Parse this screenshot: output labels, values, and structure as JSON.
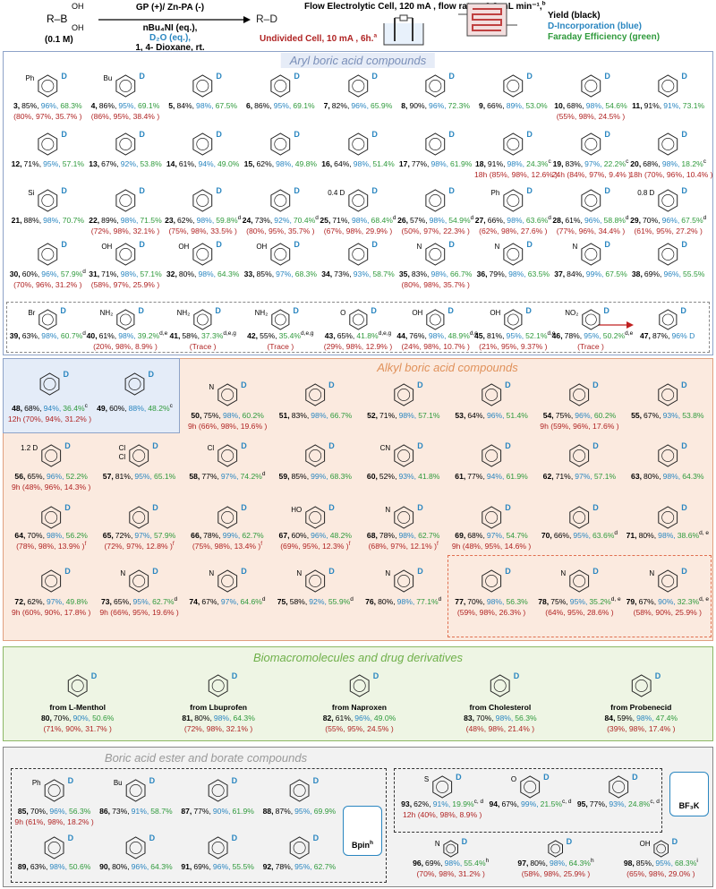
{
  "header": {
    "reactant": "R–B",
    "oh": [
      "OH",
      "OH"
    ],
    "concentration": "(0.1 M)",
    "conditions": [
      "GP (+)/ Zn-PA (-)",
      "nBu₄NI (eq.),",
      "D₂O (eq.),",
      "1, 4- Dioxane, rt."
    ],
    "product": "R–D",
    "flow_cell": "Flow Electrolytic Cell, 120 mA , flow rate = 0.3 mL min⁻¹,",
    "flow_sup": "b",
    "undivided_cell": "Undivided Cell, 10 mA , 6h.",
    "undivided_sup": "a",
    "legend": [
      "Yield (black)",
      "D-Incorporation (blue)",
      "Faraday Efficiency (green)"
    ]
  },
  "structure_label": "D",
  "sections": [
    {
      "title": "Aryl boric acid compounds",
      "entries": [
        {
          "n": "3,",
          "y": "85%,",
          "d": "96%,",
          "fe": "68.3%",
          "alt": "(80%, 97%, 35.7% )",
          "g": [
            "Ph"
          ]
        },
        {
          "n": "4,",
          "y": "86%,",
          "d": "95%,",
          "fe": "69.1%",
          "alt": "(86%, 95%, 38.4% )",
          "g": [
            "Bu"
          ]
        },
        {
          "n": "5,",
          "y": "84%,",
          "d": "98%,",
          "fe": "67.5%"
        },
        {
          "n": "6,",
          "y": "86%,",
          "d": "95%,",
          "fe": "69.1%"
        },
        {
          "n": "7,",
          "y": "82%,",
          "d": "96%,",
          "fe": "65.9%"
        },
        {
          "n": "8,",
          "y": "90%,",
          "d": "96%,",
          "fe": "72.3%"
        },
        {
          "n": "9,",
          "y": "66%,",
          "d": "89%,",
          "fe": "53.0%"
        },
        {
          "n": "10,",
          "y": "68%,",
          "d": "98%,",
          "fe": "54.6%",
          "alt": "(55%, 98%, 24.5% )"
        },
        {
          "n": "11,",
          "y": "91%,",
          "d": "91%,",
          "fe": "73.1%"
        },
        {
          "n": "12,",
          "y": "71%,",
          "d": "95%,",
          "fe": "57.1%"
        },
        {
          "n": "13,",
          "y": "67%,",
          "d": "92%,",
          "fe": "53.8%"
        },
        {
          "n": "14,",
          "y": "61%,",
          "d": "94%,",
          "fe": "49.0%"
        },
        {
          "n": "15,",
          "y": "62%,",
          "d": "98%,",
          "fe": "49.8%"
        },
        {
          "n": "16,",
          "y": "64%,",
          "d": "98%,",
          "fe": "51.4%"
        },
        {
          "n": "17,",
          "y": "77%,",
          "d": "98%,",
          "fe": "61.9%"
        },
        {
          "n": "18,",
          "y": "91%,",
          "d": "98%,",
          "fe": "24.3%",
          "sup": "c",
          "alt": "18h (85%, 98%, 12.6% )"
        },
        {
          "n": "19,",
          "y": "83%,",
          "d": "97%,",
          "fe": "22.2%",
          "sup": "c",
          "alt": "24h (84%, 97%, 9.4% )"
        },
        {
          "n": "20,",
          "y": "68%,",
          "d": "98%,",
          "fe": "18.2%",
          "sup": "c",
          "alt": "18h (70%, 96%, 10.4% )"
        },
        {
          "n": "21,",
          "y": "88%,",
          "d": "98%,",
          "fe": "70.7%",
          "g": [
            "Si"
          ]
        },
        {
          "n": "22,",
          "y": "89%,",
          "d": "98%,",
          "fe": "71.5%",
          "alt": "(72%, 98%, 32.1% )"
        },
        {
          "n": "23,",
          "y": "62%,",
          "d": "98%,",
          "fe": "59.8%",
          "sup": "d",
          "alt": "(75%, 98%, 33.5% )"
        },
        {
          "n": "24,",
          "y": "73%,",
          "d": "92%,",
          "fe": "70.4%",
          "sup": "d",
          "alt": "(80%, 95%, 35.7% )"
        },
        {
          "n": "25,",
          "y": "71%,",
          "d": "98%,",
          "fe": "68.4%",
          "sup": "d",
          "alt": "(67%, 98%, 29.9% )",
          "g": [
            "0.4 D"
          ]
        },
        {
          "n": "26,",
          "y": "57%,",
          "d": "98%,",
          "fe": "54.9%",
          "sup": "d",
          "alt": "(50%, 97%, 22.3% )"
        },
        {
          "n": "27,",
          "y": "66%,",
          "d": "98%,",
          "fe": "63.6%",
          "sup": "d",
          "alt": "(62%, 98%, 27.6% )",
          "g": [
            "Ph"
          ]
        },
        {
          "n": "28,",
          "y": "61%,",
          "d": "96%,",
          "fe": "58.8%",
          "sup": "d",
          "alt": "(77%, 96%, 34.4% )"
        },
        {
          "n": "29,",
          "y": "70%,",
          "d": "96%,",
          "fe": "67.5%",
          "sup": "d",
          "alt": "(61%, 95%, 27.2% )",
          "g": [
            "0.8 D"
          ]
        },
        {
          "n": "30,",
          "y": "60%,",
          "d": "96%,",
          "fe": "57.9%",
          "sup": "d",
          "alt": "(70%, 96%, 31.2% )"
        },
        {
          "n": "31,",
          "y": "71%,",
          "d": "98%,",
          "fe": "57.1%",
          "alt": "(58%, 97%, 25.9% )",
          "g": [
            "OH"
          ]
        },
        {
          "n": "32,",
          "y": "80%,",
          "d": "98%,",
          "fe": "64.3%",
          "g": [
            "OH"
          ]
        },
        {
          "n": "33,",
          "y": "85%,",
          "d": "97%,",
          "fe": "68.3%",
          "g": [
            "OH"
          ]
        },
        {
          "n": "34,",
          "y": "73%,",
          "d": "93%,",
          "fe": "58.7%"
        },
        {
          "n": "35,",
          "y": "83%,",
          "d": "98%,",
          "fe": "66.7%",
          "alt": "(80%, 98%, 35.7% )",
          "g": [
            "N"
          ]
        },
        {
          "n": "36,",
          "y": "79%,",
          "d": "98%,",
          "fe": "63.5%",
          "g": [
            "N"
          ]
        },
        {
          "n": "37,",
          "y": "84%,",
          "d": "99%,",
          "fe": "67.5%",
          "g": [
            "N"
          ]
        },
        {
          "n": "38,",
          "y": "69%,",
          "d": "96%,",
          "fe": "55.5%"
        },
        {
          "n": "39,",
          "y": "63%,",
          "d": "98%,",
          "fe": "60.7%",
          "sup": "d",
          "g": [
            "Br"
          ]
        },
        {
          "n": "40,",
          "y": "61%,",
          "d": "98%,",
          "fe": "39.2%",
          "sup": "d,e",
          "alt": "(20%, 98%, 8.9% )",
          "g": [
            "NH₂"
          ]
        },
        {
          "n": "41,",
          "y": "58%,",
          "fe": "37.3%",
          "sup": "d,e,g",
          "alt": "(Trace )",
          "g": [
            "NH₂"
          ]
        },
        {
          "n": "42,",
          "y": "55%,",
          "fe": "35.4%",
          "sup": "d,e,g",
          "alt": "(Trace )",
          "g": [
            "NH₂"
          ]
        },
        {
          "n": "43,",
          "y": "65%,",
          "fe": "41.8%",
          "sup": "d,e,g",
          "alt": "(29%, 98%, 12.9% )",
          "g": [
            "O"
          ]
        },
        {
          "n": "44,",
          "y": "76%,",
          "d": "98%,",
          "fe": "48.9%",
          "sup": "d,e",
          "alt": "(24%, 98%, 10.7% )",
          "g": [
            "OH"
          ]
        },
        {
          "n": "45,",
          "y": "81%,",
          "d": "95%,",
          "fe": "52.1%",
          "sup": "d,e",
          "alt": "(21%, 95%, 9.37% )",
          "g": [
            "OH"
          ]
        },
        {
          "n": "46,",
          "y": "78%,",
          "d": "95%,",
          "fe": "50.2%",
          "sup": "d,e",
          "alt": "(Trace )",
          "g": [
            "NO₂"
          ]
        },
        {
          "n": "47,",
          "y": "87%,",
          "d": "96% D"
        }
      ]
    },
    {
      "entries": [
        {
          "n": "48,",
          "y": "68%,",
          "d": "94%,",
          "fe": "36.4%",
          "sup": "c",
          "alt": "12h (70%, 94%, 31.2% )"
        },
        {
          "n": "49,",
          "y": "60%,",
          "d": "88%,",
          "fe": "48.2%",
          "sup": "c"
        }
      ]
    },
    {
      "title": "Alkyl boric acid compounds",
      "entries": [
        {
          "n": "50,",
          "y": "75%,",
          "d": "98%,",
          "fe": "60.2%",
          "alt": "9h (66%, 98%, 19.6% )",
          "g": [
            "N"
          ]
        },
        {
          "n": "51,",
          "y": "83%,",
          "d": "98%,",
          "fe": "66.7%"
        },
        {
          "n": "52,",
          "y": "71%,",
          "d": "98%,",
          "fe": "57.1%"
        },
        {
          "n": "53,",
          "y": "64%,",
          "d": "96%,",
          "fe": "51.4%"
        },
        {
          "n": "54,",
          "y": "75%,",
          "d": "96%,",
          "fe": "60.2%",
          "alt": "9h (59%, 96%, 17.6% )"
        },
        {
          "n": "55,",
          "y": "67%,",
          "d": "93%,",
          "fe": "53.8%"
        },
        {
          "n": "56,",
          "y": "65%,",
          "d": "96%,",
          "fe": "52.2%",
          "alt": "9h (48%, 96%, 14.3% )",
          "g": [
            "1.2 D"
          ]
        },
        {
          "n": "57,",
          "y": "81%,",
          "d": "95%,",
          "fe": "65.1%",
          "g": [
            "Cl",
            "Cl"
          ]
        },
        {
          "n": "58,",
          "y": "77%,",
          "d": "97%,",
          "fe": "74.2%",
          "sup": "d",
          "g": [
            "Cl"
          ]
        },
        {
          "n": "59,",
          "y": "85%,",
          "d": "99%,",
          "fe": "68.3%"
        },
        {
          "n": "60,",
          "y": "52%,",
          "d": "93%,",
          "fe": "41.8%",
          "g": [
            "CN"
          ]
        },
        {
          "n": "61,",
          "y": "77%,",
          "d": "94%,",
          "fe": "61.9%"
        },
        {
          "n": "62,",
          "y": "71%,",
          "d": "97%,",
          "fe": "57.1%"
        },
        {
          "n": "63,",
          "y": "80%,",
          "d": "98%,",
          "fe": "64.3%"
        },
        {
          "n": "64,",
          "y": "70%,",
          "d": "98%,",
          "fe": "56.2%",
          "alt": "(78%, 98%, 13.9% )",
          "alt_sup": "f"
        },
        {
          "n": "65,",
          "y": "72%,",
          "d": "97%,",
          "fe": "57.9%",
          "alt": "(72%, 97%, 12.8% )",
          "alt_sup": "f"
        },
        {
          "n": "66,",
          "y": "78%,",
          "d": "99%,",
          "fe": "62.7%",
          "alt": "(75%, 98%, 13.4% )",
          "alt_sup": "f"
        },
        {
          "n": "67,",
          "y": "60%,",
          "d": "96%,",
          "fe": "48.2%",
          "alt": "(69%, 95%, 12.3% )",
          "alt_sup": "f",
          "g": [
            "HO"
          ]
        },
        {
          "n": "68,",
          "y": "78%,",
          "d": "98%,",
          "fe": "62.7%",
          "alt": "(68%, 97%, 12.1% )",
          "alt_sup": "f",
          "g": [
            "N"
          ]
        },
        {
          "n": "69,",
          "y": "68%,",
          "d": "97%,",
          "fe": "54.7%",
          "alt": "9h (48%, 95%, 14.6% )"
        },
        {
          "n": "70,",
          "y": "66%,",
          "d": "95%,",
          "fe": "63.6%",
          "sup": "d"
        },
        {
          "n": "71,",
          "y": "80%,",
          "d": "98%,",
          "fe": "38.6%",
          "sup": "d, e"
        },
        {
          "n": "72,",
          "y": "62%,",
          "d": "97%,",
          "fe": "49.8%",
          "alt": "9h (60%, 90%, 17.8% )"
        },
        {
          "n": "73,",
          "y": "65%,",
          "d": "95%,",
          "fe": "62.7%",
          "sup": "d",
          "alt": "9h (66%, 95%, 19.6% )",
          "g": [
            "N"
          ]
        },
        {
          "n": "74,",
          "y": "67%,",
          "d": "97%,",
          "fe": "64.6%",
          "sup": "d",
          "g": [
            "N"
          ]
        },
        {
          "n": "75,",
          "y": "58%,",
          "d": "92%,",
          "fe": "55.9%",
          "sup": "d",
          "g": [
            "N"
          ]
        },
        {
          "n": "76,",
          "y": "80%,",
          "d": "98%,",
          "fe": "77.1%",
          "sup": "d",
          "g": [
            "N"
          ]
        },
        {
          "n": "77,",
          "y": "70%,",
          "d": "98%,",
          "fe": "56.3%",
          "alt": "(59%, 98%, 26.3% )"
        },
        {
          "n": "78,",
          "y": "75%,",
          "d": "95%,",
          "fe": "35.2%",
          "sup": "d, e",
          "alt": "(64%, 95%, 28.6% )",
          "g": [
            "N"
          ]
        },
        {
          "n": "79,",
          "y": "67%,",
          "d": "90%,",
          "fe": "32.3%",
          "sup": "d, e",
          "alt": "(58%, 90%, 25.9% )",
          "g": [
            "N"
          ]
        }
      ]
    },
    {
      "title": "Biomacromolecules and drug derivatives",
      "entries": [
        {
          "from": "from L-Menthol",
          "n": "80,",
          "y": "70%,",
          "d": "90%,",
          "fe": "50.6%",
          "alt": "(71%, 90%, 31.7% )"
        },
        {
          "from": "from Lbuprofen",
          "n": "81,",
          "y": "80%,",
          "d": "98%,",
          "fe": "64.3%",
          "alt": "(72%, 98%, 32.1% )"
        },
        {
          "from": "from Naproxen",
          "n": "82,",
          "y": "61%,",
          "d": "96%,",
          "fe": "49.0%",
          "alt": "(55%, 95%, 24.5% )"
        },
        {
          "from": "from Cholesterol",
          "n": "83,",
          "y": "70%,",
          "d": "98%,",
          "fe": "56.3%",
          "alt": "(48%, 98%, 21.4% )"
        },
        {
          "from": "from Probenecid",
          "n": "84,",
          "y": "59%,",
          "d": "98%,",
          "fe": "47.4%",
          "alt": "(39%, 98%, 17.4% )"
        }
      ]
    },
    {
      "title": "Boric acid ester and borate compounds",
      "reagents": [
        {
          "text": "Bpin",
          "sup": "h"
        },
        {
          "text": "BF₃K"
        }
      ],
      "entries": [
        {
          "n": "85,",
          "y": "70%,",
          "d": "96%,",
          "fe": "56.3%",
          "alt": "9h (61%, 98%, 18.2% )",
          "g": [
            "Ph"
          ]
        },
        {
          "n": "86,",
          "y": "73%,",
          "d": "91%,",
          "fe": "58.7%",
          "g": [
            "Bu"
          ]
        },
        {
          "n": "87,",
          "y": "77%,",
          "d": "90%,",
          "fe": "61.9%"
        },
        {
          "n": "88,",
          "y": "87%,",
          "d": "95%,",
          "fe": "69.9%"
        },
        {
          "n": "89,",
          "y": "63%,",
          "d": "98%,",
          "fe": "50.6%"
        },
        {
          "n": "90,",
          "y": "80%,",
          "d": "96%,",
          "fe": "64.3%"
        },
        {
          "n": "91,",
          "y": "69%,",
          "d": "96%,",
          "fe": "55.5%"
        },
        {
          "n": "92,",
          "y": "78%,",
          "d": "95%,",
          "fe": "62.7%"
        },
        {
          "n": "93,",
          "y": "62%,",
          "d": "91%,",
          "fe": "19.9%",
          "sup": "c, d",
          "alt": "12h (40%, 98%, 8.9% )",
          "g": [
            "S"
          ]
        },
        {
          "n": "94,",
          "y": "67%,",
          "d": "99%,",
          "fe": "21.5%",
          "sup": "c, d",
          "g": [
            "O"
          ]
        },
        {
          "n": "95,",
          "y": "77%,",
          "d": "93%,",
          "fe": "24.8%",
          "sup": "c, d"
        },
        {
          "n": "96,",
          "y": "69%,",
          "d": "98%,",
          "fe": "55.4%",
          "sup": "h",
          "alt": "(70%, 98%, 31.2% )",
          "g": [
            "N"
          ]
        },
        {
          "n": "97,",
          "y": "80%,",
          "d": "98%,",
          "fe": "64.3%",
          "sup": "h",
          "alt": "(58%, 98%, 25.9% )"
        },
        {
          "n": "98,",
          "y": "85%,",
          "d": "95%,",
          "fe": "68.3%",
          "sup": "i",
          "alt": "(65%, 98%, 29.0% )",
          "g": [
            "OH"
          ]
        }
      ]
    }
  ]
}
